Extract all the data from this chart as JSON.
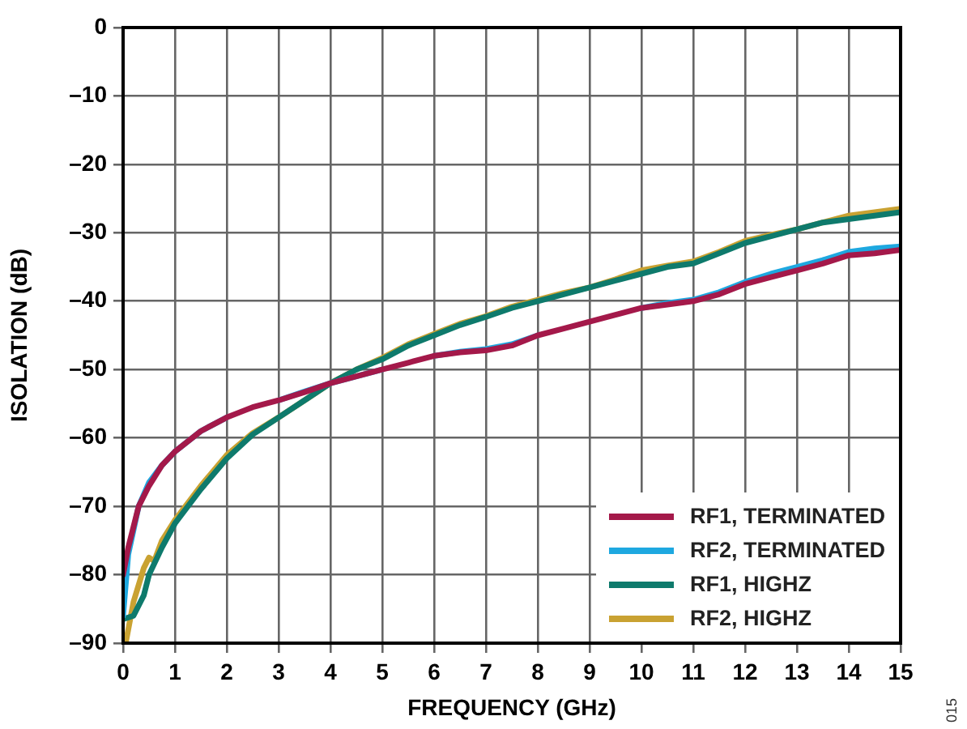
{
  "chart_data": {
    "type": "line",
    "xlabel": "FREQUENCY (GHz)",
    "ylabel": "ISOLATION (dB)",
    "xlim": [
      0,
      15
    ],
    "xticks": [
      0,
      1,
      2,
      3,
      4,
      5,
      6,
      7,
      8,
      9,
      10,
      11,
      12,
      13,
      14,
      15
    ],
    "ylim": [
      -90,
      0
    ],
    "yticks": [
      {
        "value": -90,
        "label": "–90"
      },
      {
        "value": -80,
        "label": "–80"
      },
      {
        "value": -70,
        "label": "–70"
      },
      {
        "value": -60,
        "label": "–60"
      },
      {
        "value": -50,
        "label": "–50"
      },
      {
        "value": -40,
        "label": "–40"
      },
      {
        "value": -30,
        "label": "–30"
      },
      {
        "value": -20,
        "label": "–20"
      },
      {
        "value": -10,
        "label": "–10"
      },
      0
    ],
    "grid": true,
    "legend": "bottom right",
    "marker": "none",
    "line_style": "solid",
    "annotations": [
      "015"
    ],
    "series": [
      {
        "name": "RF1, TERMINATED",
        "color": "#a4194a",
        "x": [
          0,
          0.1,
          0.3,
          0.5,
          0.75,
          1,
          1.5,
          2,
          2.5,
          3,
          3.5,
          4,
          4.5,
          5,
          5.5,
          6,
          6.5,
          7,
          7.5,
          8,
          8.5,
          9,
          9.5,
          10,
          10.5,
          11,
          11.5,
          12,
          12.5,
          13,
          13.5,
          14,
          14.5,
          15
        ],
        "values": [
          -80,
          -76,
          -70,
          -67,
          -64,
          -62,
          -59,
          -57,
          -55.5,
          -54.5,
          -53.3,
          -52,
          -51,
          -50,
          -49,
          -48,
          -47.5,
          -47.2,
          -46.5,
          -45,
          -44,
          -43,
          -42,
          -41,
          -40.5,
          -40,
          -39,
          -37.5,
          -36.5,
          -35.5,
          -34.5,
          -33.3,
          -33,
          -32.5
        ]
      },
      {
        "name": "RF2, TERMINATED",
        "color": "#1ea8e0",
        "x": [
          0,
          0.1,
          0.3,
          0.5,
          0.75,
          1,
          1.5,
          2,
          2.5,
          3,
          3.5,
          4,
          4.5,
          5,
          5.5,
          6,
          6.5,
          7,
          7.5,
          8,
          8.5,
          9,
          9.5,
          10,
          10.5,
          11,
          11.5,
          12,
          12.5,
          13,
          13.5,
          14,
          14.5,
          15
        ],
        "values": [
          -86,
          -77,
          -70,
          -66.5,
          -64,
          -62,
          -59,
          -57,
          null,
          -54.5,
          -53.2,
          -52,
          -51,
          -50,
          null,
          -48,
          -47.4,
          -47,
          -46.3,
          -45,
          null,
          null,
          null,
          -41,
          -40.3,
          -39.8,
          -38.7,
          -37.2,
          -36,
          -35,
          -34,
          -32.8,
          -32.3,
          -32
        ]
      },
      {
        "name": "RF1, HIGHZ",
        "color": "#0e7a6c",
        "x": [
          0,
          0.2,
          0.4,
          0.5,
          0.75,
          1,
          1.5,
          2,
          2.5,
          3,
          3.5,
          4,
          4.5,
          5,
          5.5,
          6,
          6.5,
          7,
          7.5,
          8,
          8.5,
          9,
          9.5,
          10,
          10.5,
          11,
          11.5,
          12,
          12.5,
          13,
          13.5,
          14,
          14.5,
          15
        ],
        "values": [
          -86.5,
          -86,
          -83,
          -80,
          -76,
          -72.5,
          -67.5,
          -63,
          -59.5,
          -57,
          -54.5,
          -52,
          -50,
          -48.5,
          -46.5,
          -45,
          -43.5,
          -42.3,
          -41,
          -40,
          -39,
          -38,
          -37,
          -36,
          -35,
          -34.5,
          -33,
          -31.5,
          -30.5,
          -29.5,
          -28.5,
          -28,
          -27.5,
          -27
        ]
      },
      {
        "name": "RF2, HIGHZ",
        "color": "#c9a232",
        "x": [
          0.05,
          0.2,
          0.4,
          0.5,
          0.6,
          0.75,
          1,
          1.5,
          2,
          2.5,
          3,
          3.5,
          4,
          4.5,
          5,
          5.5,
          6,
          6.5,
          7,
          7.5,
          8,
          8.5,
          9,
          9.5,
          10,
          10.5,
          11,
          11.5,
          12,
          12.5,
          13,
          13.5,
          14,
          14.5,
          15
        ],
        "values": [
          -90,
          -84,
          -79,
          -77.5,
          -78,
          -75,
          -72,
          -67,
          -62.5,
          -59.3,
          -57,
          -54.5,
          -52,
          -50,
          -48.3,
          -46.3,
          -44.8,
          -43.3,
          -42.2,
          -40.8,
          -39.8,
          -38.8,
          -38,
          -36.8,
          -35.5,
          -34.8,
          -34.2,
          -32.8,
          -31.2,
          -30.3,
          -29.5,
          -28.5,
          -27.5,
          -27,
          -26.5
        ]
      }
    ]
  }
}
